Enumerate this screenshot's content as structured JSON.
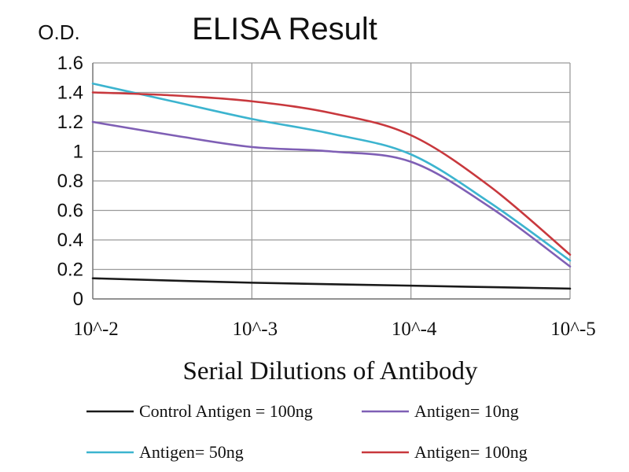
{
  "chart_data": {
    "type": "line",
    "title": "ELISA Result",
    "ylabel": "O.D.",
    "xlabel": "Serial Dilutions of Antibody",
    "categories": [
      "10^-2",
      "10^-3",
      "10^-4",
      "10^-5"
    ],
    "x_positions": [
      0,
      1,
      2,
      3
    ],
    "ylim": [
      0,
      1.6
    ],
    "yticks": [
      "0",
      "0.2",
      "0.4",
      "0.6",
      "0.8",
      "1",
      "1.2",
      "1.4",
      "1.6"
    ],
    "grid": true,
    "legend_position": "bottom",
    "series": [
      {
        "name": "Control Antigen = 100ng",
        "color": "#1a1a1a",
        "x": [
          0,
          1,
          2,
          3
        ],
        "y": [
          0.14,
          0.11,
          0.09,
          0.07
        ]
      },
      {
        "name": "Antigen= 10ng",
        "color": "#7f5fb5",
        "x": [
          0,
          0.5,
          1,
          1.5,
          2,
          2.5,
          3
        ],
        "y": [
          1.2,
          1.11,
          1.03,
          1.0,
          0.93,
          0.62,
          0.22
        ]
      },
      {
        "name": "Antigen= 50ng",
        "color": "#3cb4cf",
        "x": [
          0,
          0.5,
          1,
          1.5,
          2,
          2.5,
          3
        ],
        "y": [
          1.46,
          1.34,
          1.22,
          1.12,
          0.98,
          0.65,
          0.26
        ]
      },
      {
        "name": "Antigen= 100ng",
        "color": "#c8383d",
        "x": [
          0,
          0.5,
          1,
          1.5,
          2,
          2.5,
          3
        ],
        "y": [
          1.4,
          1.38,
          1.34,
          1.26,
          1.11,
          0.76,
          0.3
        ]
      }
    ]
  }
}
